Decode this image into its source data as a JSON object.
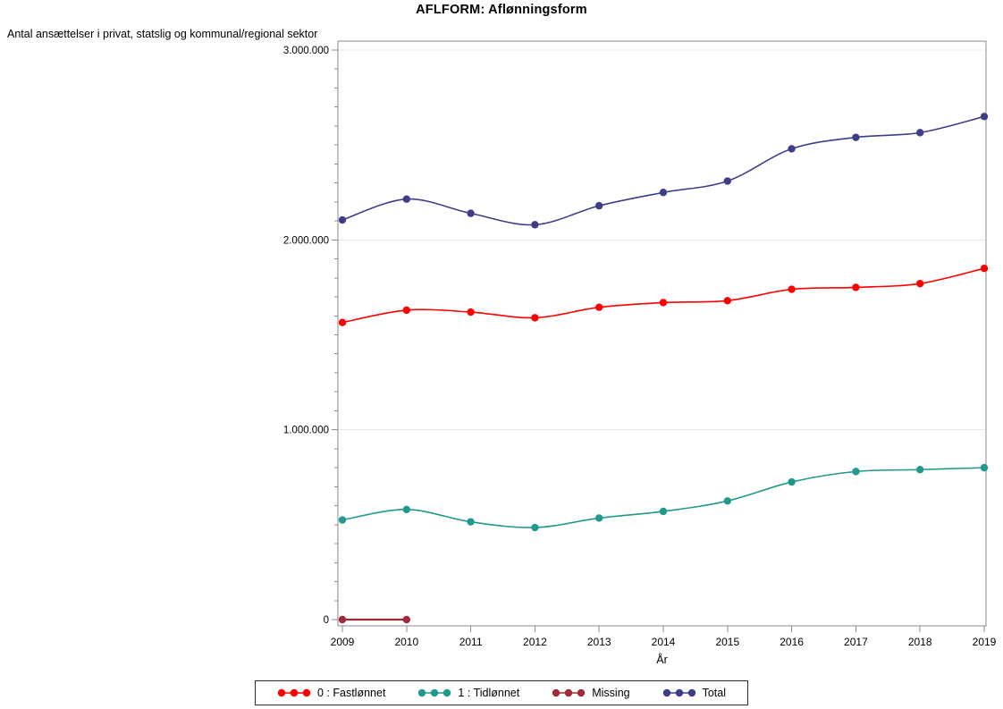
{
  "window": {
    "background": "#FFFFFF"
  },
  "chart": {
    "title": "AFLFORM: Aflønningsform",
    "y_axis_label": "Antal ansættelser i privat, statslig og kommunal/regional sektor",
    "x_axis_label": "År"
  },
  "chart_data": {
    "type": "line",
    "title": "AFLFORM: Aflønningsform",
    "xlabel": "År",
    "ylabel": "Antal ansættelser i privat, statslig og kommunal/regional sektor",
    "smooth": true,
    "grid": true,
    "legend_position": "bottom",
    "marker": "circle",
    "ylim": [
      0,
      3000000
    ],
    "minor_tick_interval": 100000,
    "y_ticks": [
      0,
      1000000,
      2000000,
      3000000
    ],
    "y_tick_labels": [
      "0",
      "1.000.000",
      "2.000.000",
      "3.000.000"
    ],
    "categories": [
      2009,
      2010,
      2011,
      2012,
      2013,
      2014,
      2015,
      2016,
      2017,
      2018,
      2019
    ],
    "x_tick_labels": [
      "2009",
      "2010",
      "2011",
      "2012",
      "2013",
      "2014",
      "2015",
      "2016",
      "2017",
      "2018",
      "2019"
    ],
    "axis_color": "#8A8A8A",
    "grid_color": "#E9E9E9",
    "text_color": "#000000",
    "series": [
      {
        "name": "0 : Fastlønnet",
        "color": "#FF0000",
        "line_width": 1.6,
        "values": [
          1565000,
          1630000,
          1620000,
          1590000,
          1645000,
          1670000,
          1680000,
          1740000,
          1750000,
          1770000,
          1850000
        ]
      },
      {
        "name": "1 : Tidlønnet",
        "color": "#21998C",
        "line_width": 1.6,
        "values": [
          525000,
          580000,
          515000,
          485000,
          535000,
          570000,
          625000,
          725000,
          780000,
          790000,
          800000
        ]
      },
      {
        "name": "Missing",
        "color": "#9D2B3A",
        "line_width": 2.2,
        "values": [
          0,
          0,
          null,
          null,
          null,
          null,
          null,
          null,
          null,
          null,
          null
        ]
      },
      {
        "name": "Total",
        "color": "#3E3E87",
        "line_width": 1.6,
        "values": [
          2105000,
          2215000,
          2140000,
          2080000,
          2180000,
          2250000,
          2310000,
          2480000,
          2540000,
          2565000,
          2650000
        ]
      }
    ]
  }
}
